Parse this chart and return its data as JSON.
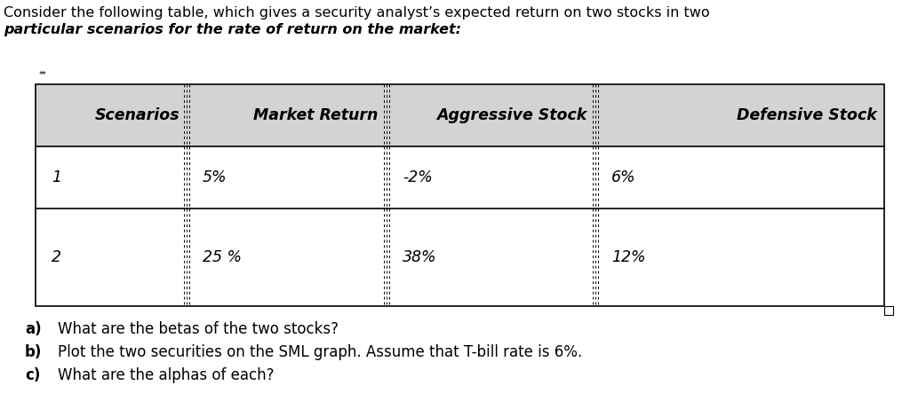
{
  "title_line1": "Consider the following table, which gives a security analyst’s expected return on two stocks in two",
  "title_line2": "particular scenarios for the rate of return on the market:",
  "table_headers": [
    "Scenarios",
    "Market Return",
    "Aggressive Stock",
    "Defensive Stock"
  ],
  "table_rows": [
    [
      "1",
      "5%",
      "-2%",
      "6%"
    ],
    [
      "2",
      "25 %",
      "38%",
      "12%"
    ]
  ],
  "questions": [
    [
      "a)",
      "What are the betas of the two stocks?"
    ],
    [
      "b)",
      "Plot the two securities on the SML graph. Assume that T-bill rate is 6%."
    ],
    [
      "c)",
      "What are the alphas of each?"
    ]
  ],
  "header_bg": "#d3d3d3",
  "cell_bg": "#ffffff",
  "border_color": "#000000",
  "text_color": "#000000",
  "font_size_title": 11.5,
  "font_size_table": 12.5,
  "font_size_questions": 12
}
